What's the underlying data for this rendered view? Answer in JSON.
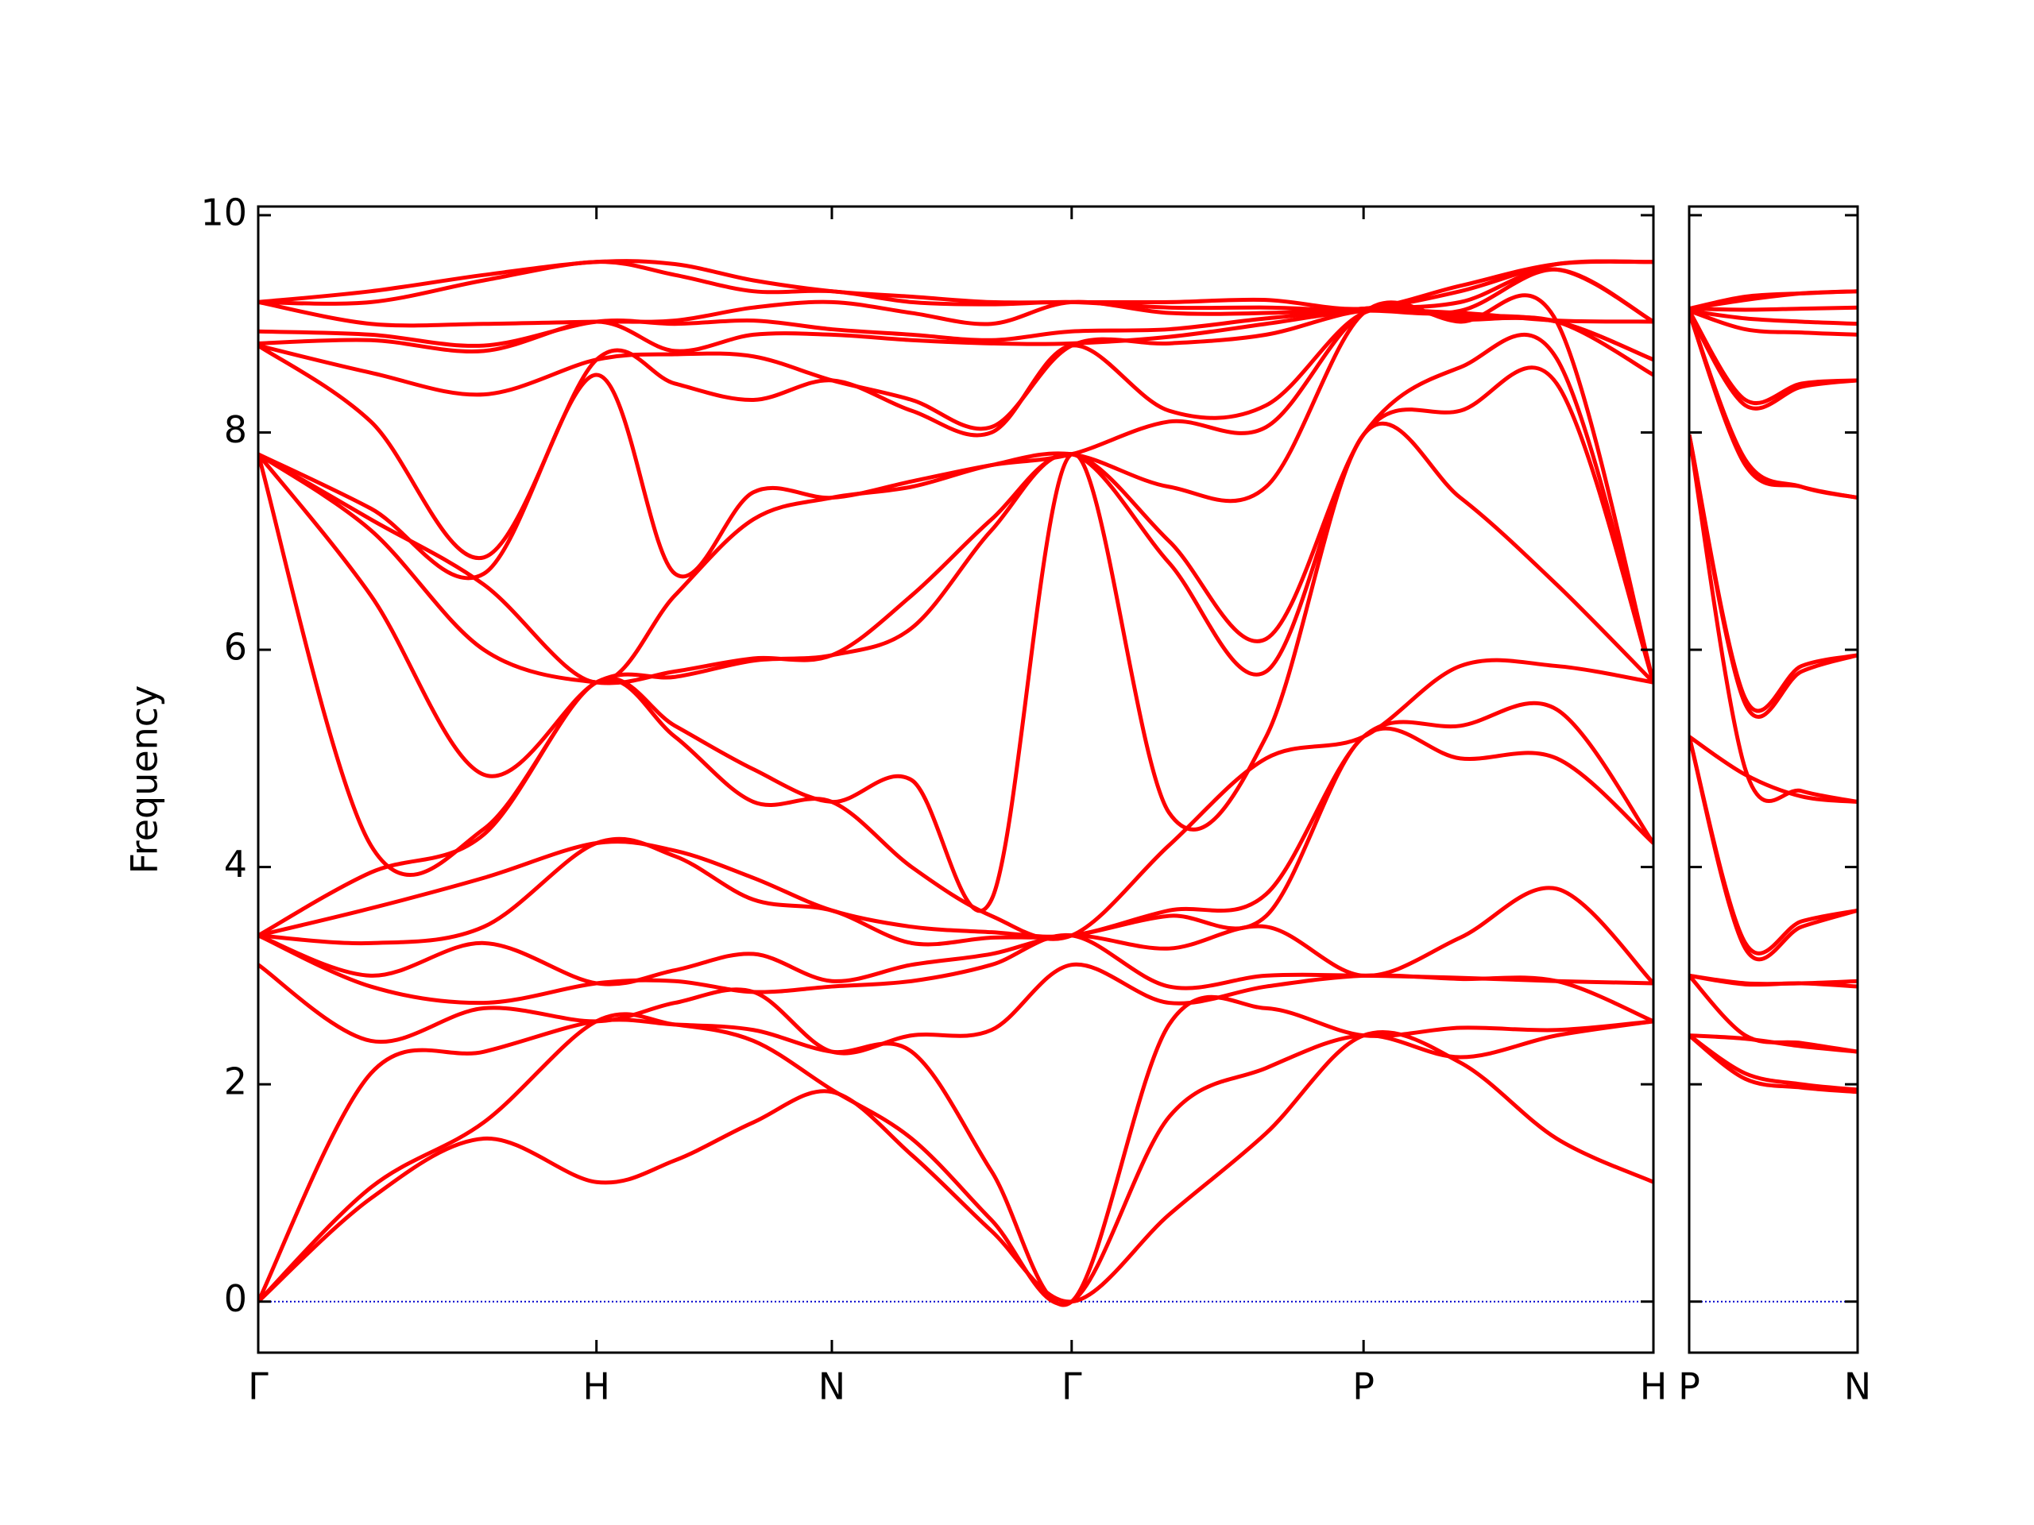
{
  "chart_data": [
    {
      "type": "line",
      "ylabel": "Frequency",
      "color": "#ff0000",
      "zero_line": {
        "value": 0,
        "color": "#0000cc"
      },
      "xlim": [
        0,
        4.125
      ],
      "ylim": [
        -0.47,
        10.08
      ],
      "yticks": [
        0,
        2,
        4,
        6,
        8,
        10
      ],
      "xticks": [
        {
          "value": 0,
          "label": "Γ"
        },
        {
          "value": 1.0,
          "label": "H"
        },
        {
          "value": 1.696,
          "label": "N"
        },
        {
          "value": 2.405,
          "label": "Γ"
        },
        {
          "value": 3.268,
          "label": "P"
        },
        {
          "value": 4.125,
          "label": "H"
        }
      ],
      "x": [
        0,
        0.333,
        0.667,
        1.0,
        1.232,
        1.464,
        1.696,
        1.932,
        2.168,
        2.405,
        2.693,
        2.98,
        3.268,
        3.554,
        3.839,
        4.125
      ],
      "bands": [
        [
          0,
          0.95,
          1.5,
          1.1,
          1.3,
          1.65,
          1.93,
          1.35,
          0.65,
          0,
          0.8,
          1.55,
          2.45,
          2.2,
          1.5,
          1.1
        ],
        [
          0,
          1.05,
          1.65,
          2.58,
          2.55,
          2.4,
          1.95,
          1.5,
          0.75,
          0,
          1.7,
          2.15,
          2.45,
          2.25,
          2.45,
          2.58
        ],
        [
          0,
          2.1,
          2.3,
          2.58,
          2.55,
          2.5,
          2.3,
          2.3,
          1.2,
          0,
          2.55,
          2.7,
          2.45,
          2.52,
          2.5,
          2.58
        ],
        [
          3.1,
          2.4,
          2.7,
          2.58,
          2.75,
          2.85,
          2.3,
          2.45,
          2.5,
          3.1,
          2.75,
          2.9,
          3.0,
          2.97,
          2.95,
          2.58
        ],
        [
          3.37,
          2.9,
          2.75,
          2.93,
          2.95,
          2.85,
          2.9,
          2.95,
          3.1,
          3.37,
          2.9,
          3.0,
          3.0,
          2.98,
          2.95,
          2.93
        ],
        [
          3.37,
          3.0,
          3.3,
          2.93,
          3.05,
          3.2,
          2.95,
          3.1,
          3.2,
          3.37,
          3.25,
          3.45,
          3.0,
          3.35,
          3.8,
          2.93
        ],
        [
          3.37,
          3.3,
          3.45,
          4.22,
          4.1,
          3.7,
          3.6,
          3.3,
          3.35,
          3.37,
          3.55,
          3.55,
          5.2,
          5.0,
          5.0,
          4.22
        ],
        [
          3.37,
          3.62,
          3.9,
          4.22,
          4.15,
          3.9,
          3.6,
          3.45,
          3.4,
          3.37,
          3.6,
          3.75,
          5.2,
          5.3,
          5.45,
          4.22
        ],
        [
          3.37,
          3.95,
          4.3,
          5.7,
          5.2,
          4.6,
          4.6,
          4.0,
          3.55,
          3.37,
          4.2,
          5.0,
          5.2,
          5.85,
          5.85,
          5.7
        ],
        [
          7.8,
          4.2,
          4.35,
          5.7,
          5.3,
          4.9,
          4.6,
          4.8,
          3.7,
          7.8,
          4.5,
          5.2,
          7.98,
          7.4,
          6.6,
          5.7
        ],
        [
          7.8,
          6.5,
          4.85,
          5.7,
          5.75,
          5.9,
          5.95,
          6.2,
          7.1,
          7.8,
          6.8,
          5.8,
          7.98,
          8.2,
          8.45,
          5.7
        ],
        [
          7.8,
          7.1,
          6.0,
          5.7,
          5.8,
          5.92,
          5.95,
          6.5,
          7.2,
          7.8,
          7.0,
          6.1,
          7.98,
          8.6,
          8.68,
          5.7
        ],
        [
          7.8,
          7.2,
          6.6,
          5.7,
          6.5,
          7.2,
          7.4,
          7.5,
          7.7,
          7.8,
          7.5,
          7.5,
          9.1,
          9.02,
          9.02,
          5.7
        ],
        [
          7.8,
          7.3,
          6.7,
          8.53,
          6.7,
          7.45,
          7.4,
          7.55,
          7.7,
          7.8,
          8.1,
          8.05,
          9.1,
          9.04,
          9.02,
          8.53
        ],
        [
          8.8,
          8.1,
          6.85,
          8.67,
          8.45,
          8.3,
          8.48,
          8.2,
          8.0,
          8.8,
          8.2,
          8.25,
          9.1,
          9.05,
          9.02,
          8.67
        ],
        [
          8.8,
          8.55,
          8.35,
          8.67,
          8.72,
          8.7,
          8.48,
          8.3,
          8.05,
          8.8,
          8.82,
          8.9,
          9.12,
          9.08,
          9.02,
          8.67
        ],
        [
          8.82,
          8.85,
          8.75,
          9.02,
          8.75,
          8.9,
          8.9,
          8.85,
          8.82,
          8.82,
          8.88,
          9.0,
          9.12,
          9.1,
          9.03,
          9.02
        ],
        [
          8.93,
          8.9,
          8.8,
          9.02,
          9.0,
          9.03,
          8.95,
          8.9,
          8.85,
          8.93,
          8.95,
          9.05,
          9.12,
          9.12,
          9.5,
          9.02
        ],
        [
          9.2,
          9.0,
          9.0,
          9.02,
          9.03,
          9.15,
          9.2,
          9.1,
          9.0,
          9.2,
          9.1,
          9.1,
          9.14,
          9.2,
          9.5,
          9.02
        ],
        [
          9.2,
          9.2,
          9.4,
          9.57,
          9.45,
          9.3,
          9.3,
          9.2,
          9.18,
          9.2,
          9.15,
          9.15,
          9.14,
          9.3,
          9.55,
          9.57
        ],
        [
          9.2,
          9.3,
          9.45,
          9.57,
          9.55,
          9.4,
          9.3,
          9.25,
          9.2,
          9.2,
          9.2,
          9.22,
          9.14,
          9.35,
          9.55,
          9.57
        ]
      ]
    },
    {
      "type": "line",
      "color": "#ff0000",
      "zero_line": {
        "value": 0,
        "color": "#0000cc"
      },
      "xlim": [
        0,
        0.498
      ],
      "ylim": [
        -0.47,
        10.08
      ],
      "yticks": [
        0,
        2,
        4,
        6,
        8,
        10
      ],
      "xticks": [
        {
          "value": 0,
          "label": "P"
        },
        {
          "value": 0.498,
          "label": "N"
        }
      ],
      "x": [
        0,
        0.166,
        0.332,
        0.498
      ],
      "bands": [
        [
          2.45,
          2.05,
          1.97,
          1.93
        ],
        [
          2.45,
          2.1,
          2.0,
          1.95
        ],
        [
          2.45,
          2.42,
          2.35,
          2.3
        ],
        [
          3.0,
          2.45,
          2.38,
          2.3
        ],
        [
          3.0,
          2.92,
          2.93,
          2.9
        ],
        [
          3.0,
          2.93,
          2.93,
          2.95
        ],
        [
          5.2,
          3.25,
          3.45,
          3.6
        ],
        [
          5.2,
          3.3,
          3.5,
          3.6
        ],
        [
          5.2,
          4.85,
          4.65,
          4.6
        ],
        [
          7.98,
          4.9,
          4.7,
          4.6
        ],
        [
          7.98,
          5.5,
          5.8,
          5.95
        ],
        [
          7.98,
          5.55,
          5.85,
          5.95
        ],
        [
          9.1,
          7.7,
          7.5,
          7.4
        ],
        [
          9.1,
          7.75,
          7.5,
          7.4
        ],
        [
          9.1,
          8.25,
          8.42,
          8.48
        ],
        [
          9.12,
          8.3,
          8.45,
          8.48
        ],
        [
          9.12,
          8.95,
          8.92,
          8.9
        ],
        [
          9.12,
          9.05,
          9.02,
          9.0
        ],
        [
          9.14,
          9.13,
          9.14,
          9.15
        ],
        [
          9.14,
          9.22,
          9.28,
          9.3
        ],
        [
          9.14,
          9.25,
          9.28,
          9.3
        ]
      ]
    }
  ]
}
